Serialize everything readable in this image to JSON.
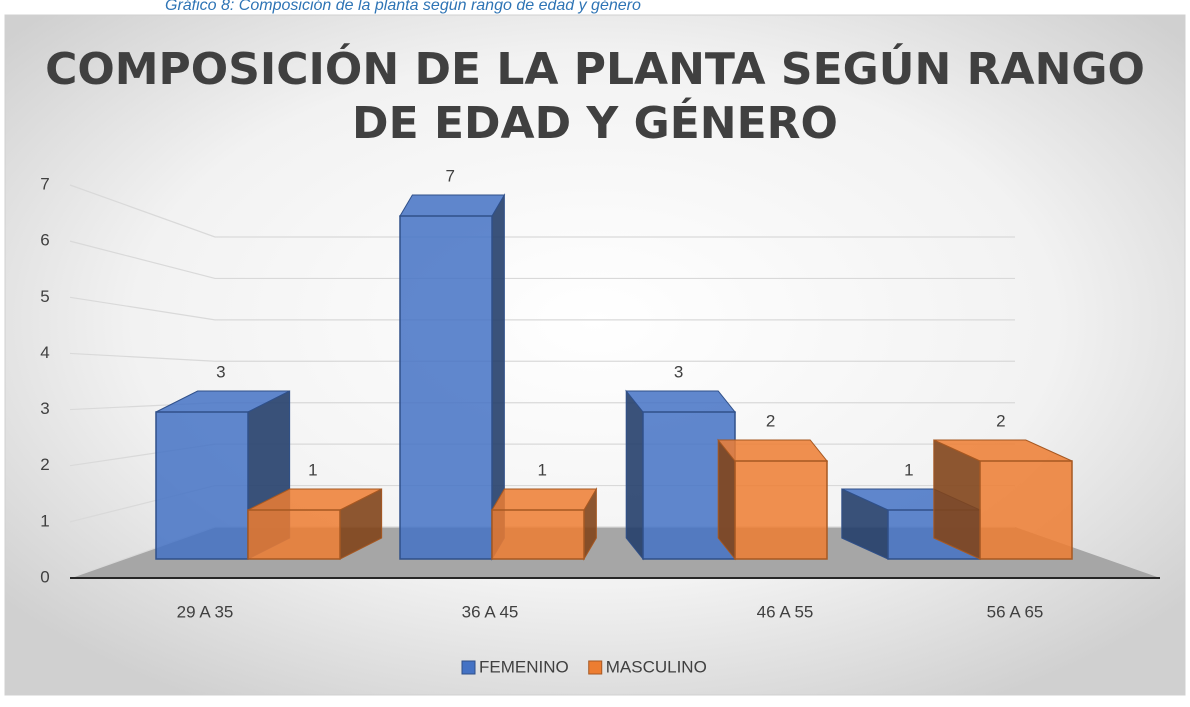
{
  "caption": "Gráfico 8: Composición de la planta según rango de edad y género",
  "chart_data": {
    "type": "bar3d",
    "title": [
      "COMPOSICIÓN DE LA PLANTA SEGÚN RANGO",
      "DE EDAD Y GÉNERO"
    ],
    "categories": [
      "29 A 35",
      "36 A 45",
      "46 A 55",
      "56 A 65"
    ],
    "series": [
      {
        "name": "FEMENINO",
        "color": "#4472c4",
        "values": [
          3,
          7,
          3,
          1
        ]
      },
      {
        "name": "MASCULINO",
        "color": "#ed7d31",
        "values": [
          1,
          1,
          2,
          2
        ]
      }
    ],
    "ylim": [
      0,
      7
    ],
    "yticks": [
      0,
      1,
      2,
      3,
      4,
      5,
      6,
      7
    ],
    "grid": true,
    "legend": "bottom"
  }
}
